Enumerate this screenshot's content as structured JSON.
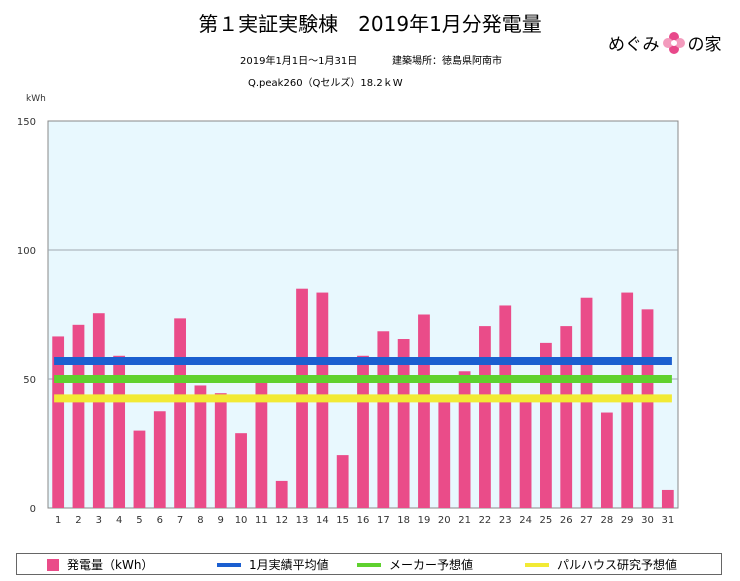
{
  "header": {
    "title": "第１実証実験棟　2019年1月分発電量",
    "period": "2019年1月1日〜1月31日",
    "location": "建築場所：徳島県阿南市",
    "spec": "Q.peak260（Qセルズ）18.2ｋW"
  },
  "logo": {
    "text_left": "めぐみ",
    "text_right": "の家",
    "icon": "flower-icon",
    "icon_color": "#e8488a"
  },
  "chart_data": {
    "type": "bar",
    "title": "第１実証実験棟　2019年1月分発電量",
    "ylabel": "kWh",
    "xlabel": "",
    "ylim": [
      0,
      150
    ],
    "yticks": [
      0,
      50,
      100,
      150
    ],
    "grid": true,
    "plot_background": "#e8f8fe",
    "categories": [
      "1",
      "2",
      "3",
      "4",
      "5",
      "6",
      "7",
      "8",
      "9",
      "10",
      "11",
      "12",
      "13",
      "14",
      "15",
      "16",
      "17",
      "18",
      "19",
      "20",
      "21",
      "22",
      "23",
      "24",
      "25",
      "26",
      "27",
      "28",
      "29",
      "30",
      "31"
    ],
    "series": [
      {
        "name": "発電量（kWh）",
        "type": "bar",
        "color": "#ea4c89",
        "values": [
          66.5,
          71,
          75.5,
          59,
          30,
          37.5,
          73.5,
          47.5,
          44.5,
          29,
          48.5,
          10.5,
          85,
          83.5,
          20.5,
          59,
          68.5,
          65.5,
          75,
          41,
          53,
          70.5,
          78.5,
          41.5,
          64,
          70.5,
          81.5,
          37,
          83.5,
          77,
          7
        ]
      },
      {
        "name": "1月実績平均値",
        "type": "line",
        "color": "#1b5fd0",
        "value": 57
      },
      {
        "name": "メーカー予想値",
        "type": "line",
        "color": "#5fd12e",
        "value": 50
      },
      {
        "name": "パルハウス研究予想値",
        "type": "line",
        "color": "#f2ea35",
        "value": 42.5
      }
    ],
    "legend_position": "bottom"
  }
}
